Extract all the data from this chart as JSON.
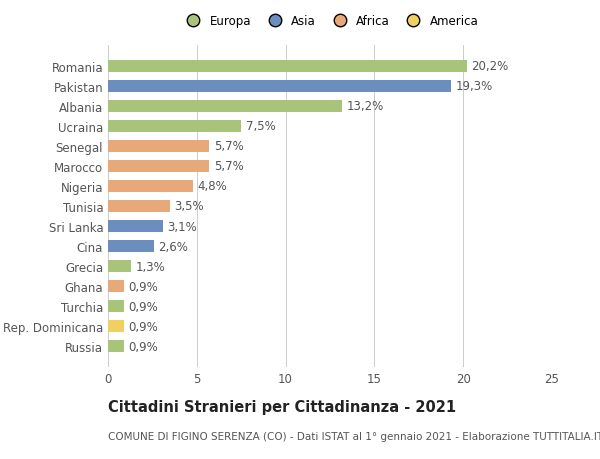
{
  "categories": [
    "Romania",
    "Pakistan",
    "Albania",
    "Ucraina",
    "Senegal",
    "Marocco",
    "Nigeria",
    "Tunisia",
    "Sri Lanka",
    "Cina",
    "Grecia",
    "Ghana",
    "Turchia",
    "Rep. Dominicana",
    "Russia"
  ],
  "values": [
    20.2,
    19.3,
    13.2,
    7.5,
    5.7,
    5.7,
    4.8,
    3.5,
    3.1,
    2.6,
    1.3,
    0.9,
    0.9,
    0.9,
    0.9
  ],
  "labels": [
    "20,2%",
    "19,3%",
    "13,2%",
    "7,5%",
    "5,7%",
    "5,7%",
    "4,8%",
    "3,5%",
    "3,1%",
    "2,6%",
    "1,3%",
    "0,9%",
    "0,9%",
    "0,9%",
    "0,9%"
  ],
  "colors": [
    "#a8c47a",
    "#6b8ebf",
    "#a8c47a",
    "#a8c47a",
    "#e8a97a",
    "#e8a97a",
    "#e8a97a",
    "#e8a97a",
    "#6b8ebf",
    "#6b8ebf",
    "#a8c47a",
    "#e8a97a",
    "#a8c47a",
    "#f0d060",
    "#a8c47a"
  ],
  "legend_labels": [
    "Europa",
    "Asia",
    "Africa",
    "America"
  ],
  "legend_colors": [
    "#a8c47a",
    "#6b8ebf",
    "#e8a97a",
    "#f0d060"
  ],
  "title": "Cittadini Stranieri per Cittadinanza - 2021",
  "subtitle": "COMUNE DI FIGINO SERENZA (CO) - Dati ISTAT al 1° gennaio 2021 - Elaborazione TUTTITALIA.IT",
  "xlim": [
    0,
    25
  ],
  "xticks": [
    0,
    5,
    10,
    15,
    20,
    25
  ],
  "background_color": "#ffffff",
  "bar_height": 0.62,
  "label_fontsize": 8.5,
  "tick_fontsize": 8.5,
  "title_fontsize": 10.5,
  "subtitle_fontsize": 7.5
}
